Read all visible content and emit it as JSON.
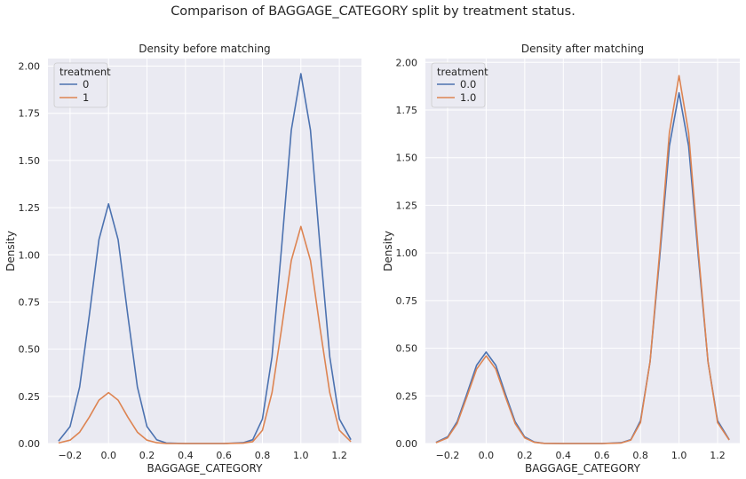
{
  "suptitle": "Comparison of BAGGAGE_CATEGORY split by treatment status.",
  "colors": {
    "series0": "#4c72b0",
    "series1": "#dd8452",
    "panel_bg": "#eaeaf2",
    "grid": "#ffffff"
  },
  "chart_data": [
    {
      "type": "line",
      "title": "Density before matching",
      "xlabel": "BAGGAGE_CATEGORY",
      "ylabel": "Density",
      "xlim": [
        -0.315,
        1.315
      ],
      "ylim": [
        0,
        2.04
      ],
      "xticks": [
        -0.2,
        0.0,
        0.2,
        0.4,
        0.6,
        0.8,
        1.0,
        1.2
      ],
      "xtick_labels": [
        "−0.2",
        "0.0",
        "0.2",
        "0.4",
        "0.6",
        "0.8",
        "1.0",
        "1.2"
      ],
      "yticks": [
        0,
        0.25,
        0.5,
        0.75,
        1.0,
        1.25,
        1.5,
        1.75,
        2.0
      ],
      "ytick_labels": [
        "0.00",
        "0.25",
        "0.50",
        "0.75",
        "1.00",
        "1.25",
        "1.50",
        "1.75",
        "2.00"
      ],
      "grid": true,
      "legend": {
        "title": "treatment",
        "position": "upper-left",
        "labels": [
          "0",
          "1"
        ]
      },
      "series": [
        {
          "name": "0",
          "color": "#4c72b0",
          "x": [
            -0.26,
            -0.2,
            -0.15,
            -0.1,
            -0.05,
            0.0,
            0.05,
            0.1,
            0.15,
            0.2,
            0.25,
            0.3,
            0.4,
            0.5,
            0.6,
            0.7,
            0.75,
            0.8,
            0.85,
            0.9,
            0.95,
            1.0,
            1.05,
            1.1,
            1.15,
            1.2,
            1.26
          ],
          "y": [
            0.013,
            0.09,
            0.3,
            0.68,
            1.08,
            1.27,
            1.08,
            0.68,
            0.3,
            0.09,
            0.02,
            0.003,
            0.0,
            0.0,
            0.0,
            0.004,
            0.02,
            0.13,
            0.46,
            1.04,
            1.66,
            1.96,
            1.66,
            1.04,
            0.46,
            0.13,
            0.02
          ]
        },
        {
          "name": "1",
          "color": "#dd8452",
          "x": [
            -0.26,
            -0.2,
            -0.15,
            -0.1,
            -0.05,
            0.0,
            0.05,
            0.1,
            0.15,
            0.2,
            0.25,
            0.3,
            0.4,
            0.5,
            0.6,
            0.7,
            0.75,
            0.8,
            0.85,
            0.9,
            0.95,
            1.0,
            1.05,
            1.1,
            1.15,
            1.2,
            1.26
          ],
          "y": [
            0.003,
            0.018,
            0.06,
            0.14,
            0.23,
            0.27,
            0.23,
            0.14,
            0.06,
            0.018,
            0.004,
            0.0,
            0.0,
            0.0,
            0.0,
            0.002,
            0.01,
            0.07,
            0.27,
            0.61,
            0.97,
            1.15,
            0.97,
            0.61,
            0.27,
            0.07,
            0.01
          ]
        }
      ]
    },
    {
      "type": "line",
      "title": "Density after matching",
      "xlabel": "BAGGAGE_CATEGORY",
      "ylabel": "Density",
      "xlim": [
        -0.315,
        1.315
      ],
      "ylim": [
        0,
        2.02
      ],
      "xticks": [
        -0.2,
        0.0,
        0.2,
        0.4,
        0.6,
        0.8,
        1.0,
        1.2
      ],
      "xtick_labels": [
        "−0.2",
        "0.0",
        "0.2",
        "0.4",
        "0.6",
        "0.8",
        "1.0",
        "1.2"
      ],
      "yticks": [
        0,
        0.25,
        0.5,
        0.75,
        1.0,
        1.25,
        1.5,
        1.75,
        2.0
      ],
      "ytick_labels": [
        "0.00",
        "0.25",
        "0.50",
        "0.75",
        "1.00",
        "1.25",
        "1.50",
        "1.75",
        "2.00"
      ],
      "grid": true,
      "legend": {
        "title": "treatment",
        "position": "upper-left",
        "labels": [
          "0.0",
          "1.0"
        ]
      },
      "series": [
        {
          "name": "0.0",
          "color": "#4c72b0",
          "x": [
            -0.26,
            -0.2,
            -0.15,
            -0.1,
            -0.05,
            0.0,
            0.05,
            0.1,
            0.15,
            0.2,
            0.25,
            0.3,
            0.4,
            0.5,
            0.6,
            0.7,
            0.75,
            0.8,
            0.85,
            0.9,
            0.95,
            1.0,
            1.05,
            1.1,
            1.15,
            1.2,
            1.26
          ],
          "y": [
            0.006,
            0.035,
            0.115,
            0.26,
            0.41,
            0.48,
            0.41,
            0.26,
            0.115,
            0.035,
            0.008,
            0.001,
            0.0,
            0.0,
            0.0,
            0.004,
            0.02,
            0.12,
            0.43,
            0.98,
            1.56,
            1.84,
            1.56,
            0.98,
            0.43,
            0.12,
            0.02
          ]
        },
        {
          "name": "1.0",
          "color": "#dd8452",
          "x": [
            -0.26,
            -0.2,
            -0.15,
            -0.1,
            -0.05,
            0.0,
            0.05,
            0.1,
            0.15,
            0.2,
            0.25,
            0.3,
            0.4,
            0.5,
            0.6,
            0.7,
            0.75,
            0.8,
            0.85,
            0.9,
            0.95,
            1.0,
            1.05,
            1.1,
            1.15,
            1.2,
            1.26
          ],
          "y": [
            0.004,
            0.03,
            0.105,
            0.245,
            0.39,
            0.46,
            0.39,
            0.245,
            0.105,
            0.03,
            0.006,
            0.001,
            0.0,
            0.0,
            0.0,
            0.003,
            0.018,
            0.11,
            0.43,
            1.01,
            1.63,
            1.93,
            1.63,
            1.01,
            0.43,
            0.11,
            0.018
          ]
        }
      ]
    }
  ]
}
